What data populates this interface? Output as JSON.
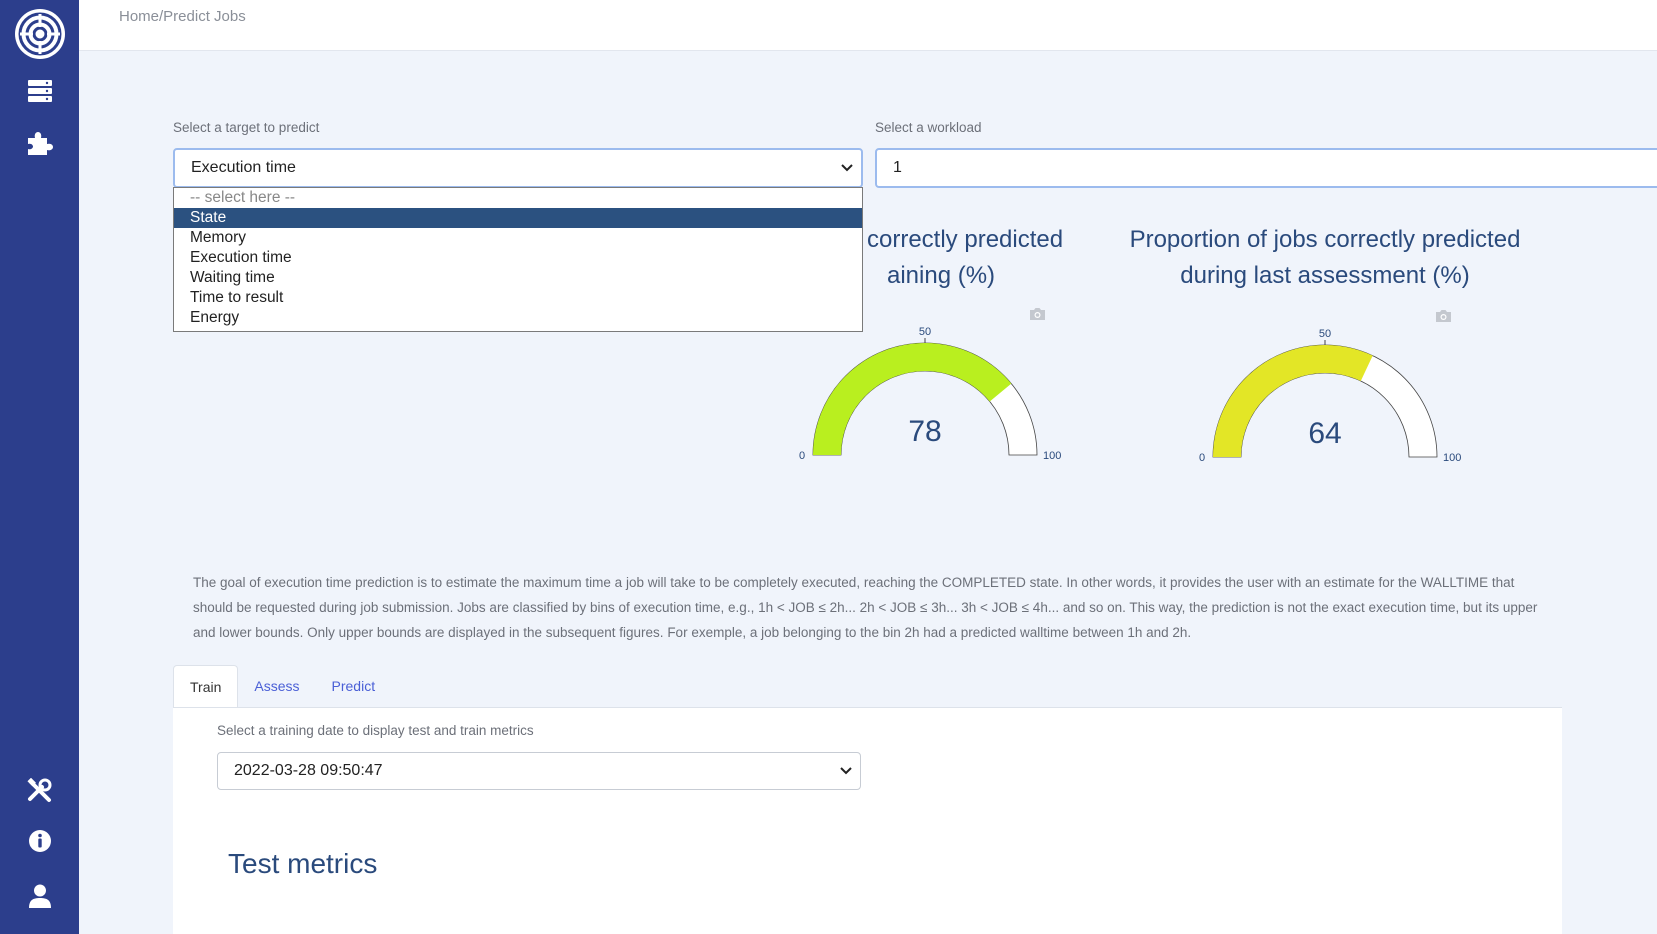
{
  "sidebar": {
    "logo": "aperture-logo-icon",
    "items": [
      {
        "icon": "server-icon"
      },
      {
        "icon": "puzzle-icon"
      },
      {
        "icon": "tools-icon"
      },
      {
        "icon": "info-icon"
      },
      {
        "icon": "user-icon"
      }
    ]
  },
  "breadcrumb": "Home/Predict Jobs",
  "target": {
    "label": "Select a target to predict",
    "value": "Execution time",
    "options": [
      "-- select here --",
      "State",
      "Memory",
      "Execution time",
      "Waiting time",
      "Time to result",
      "Energy"
    ],
    "highlighted": "State"
  },
  "workload": {
    "label": "Select a workload",
    "value": "1"
  },
  "gauges": [
    {
      "title_line1": "correctly predicted",
      "title_line2": "aining (%)",
      "value": 78,
      "min": 0,
      "max": 100,
      "mid": 50,
      "color": "#b9ef1f",
      "min_label": "0",
      "mid_label": "50",
      "max_label": "100",
      "value_label": "78"
    },
    {
      "title_line1": "Proportion of jobs correctly predicted",
      "title_line2": "during last assessment (%)",
      "value": 64,
      "min": 0,
      "max": 100,
      "mid": 50,
      "color": "#e3e626",
      "min_label": "0",
      "mid_label": "50",
      "max_label": "100",
      "value_label": "64"
    }
  ],
  "description": "The goal of execution time prediction is to estimate the maximum time a job will take to be completely executed, reaching the COMPLETED state. In other words, it provides the user with an estimate for the WALLTIME that should be requested during job submission. Jobs are classified by bins of execution time, e.g., 1h < JOB ≤ 2h... 2h < JOB ≤ 3h... 3h < JOB ≤ 4h... and so on. This way, the prediction is not the exact execution time, but its upper and lower bounds. Only upper bounds are displayed in the subsequent figures. For exemple, a job belonging to the bin 2h had a predicted walltime between 1h and 2h.",
  "tabs": [
    {
      "label": "Train",
      "active": true
    },
    {
      "label": "Assess",
      "active": false
    },
    {
      "label": "Predict",
      "active": false
    }
  ],
  "train": {
    "date_label": "Select a training date to display test and train metrics",
    "date_value": "2022-03-28 09:50:47",
    "test_metrics_heading": "Test metrics"
  },
  "colors": {
    "sidebar": "#2c3e8c",
    "accent": "#2a4a7c",
    "tab_link": "#4a5fd6",
    "dropdown_highlight": "#2b5180"
  }
}
